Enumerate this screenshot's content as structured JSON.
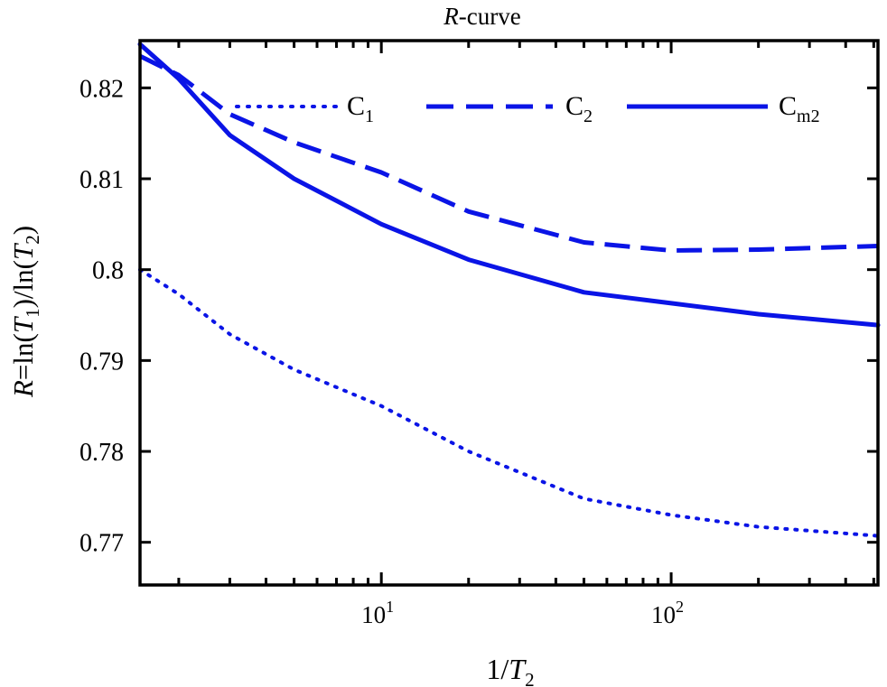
{
  "chart_data": {
    "type": "line",
    "title": "R-curve",
    "title_parts": {
      "italic": "R",
      "rest": "-curve"
    },
    "xlabel": "1/T2",
    "xlabel_parts": {
      "pre": "1/",
      "italic": "T",
      "sub": "2"
    },
    "ylabel": "R=ln(T1)/ln(T2)",
    "ylabel_parts": {
      "r": "R",
      "eq": "=ln(",
      "t1": "T",
      "s1": "1",
      "mid": ")/ln(",
      "t2": "T",
      "s2": "2",
      "end": ")"
    },
    "xscale": "log",
    "xlim": [
      1.47,
      517
    ],
    "ylim": [
      0.7653,
      0.8252
    ],
    "xticks": [
      {
        "value": 10,
        "base": "10",
        "exp": "1"
      },
      {
        "value": 100,
        "base": "10",
        "exp": "2"
      }
    ],
    "yticks": [
      {
        "value": 0.77,
        "label": "0.77"
      },
      {
        "value": 0.78,
        "label": "0.78"
      },
      {
        "value": 0.79,
        "label": "0.79"
      },
      {
        "value": 0.8,
        "label": "0.8"
      },
      {
        "value": 0.81,
        "label": "0.81"
      },
      {
        "value": 0.82,
        "label": "0.82"
      }
    ],
    "grid": false,
    "legend_position": "top",
    "color": "#0a14e6",
    "series": [
      {
        "name": "C1",
        "label_main": "C",
        "label_sub": "1",
        "style": "dotted",
        "x": [
          1.47,
          2,
          3,
          5,
          10,
          20,
          50,
          100,
          200,
          517
        ],
        "y": [
          0.8,
          0.7973,
          0.7929,
          0.789,
          0.785,
          0.78,
          0.7748,
          0.773,
          0.7717,
          0.7707
        ]
      },
      {
        "name": "C2",
        "label_main": "C",
        "label_sub": "2",
        "style": "dashed",
        "x": [
          1.47,
          2,
          3,
          5,
          10,
          20,
          50,
          100,
          200,
          517
        ],
        "y": [
          0.8235,
          0.8214,
          0.8171,
          0.814,
          0.8107,
          0.8064,
          0.803,
          0.8021,
          0.8022,
          0.8026
        ]
      },
      {
        "name": "Cm2",
        "label_main": "C",
        "label_sub": "m2",
        "style": "solid",
        "x": [
          1.47,
          2,
          3,
          5,
          10,
          20,
          50,
          100,
          200,
          517
        ],
        "y": [
          0.8248,
          0.821,
          0.8148,
          0.81,
          0.805,
          0.8011,
          0.7975,
          0.7963,
          0.7951,
          0.7939
        ]
      }
    ]
  }
}
